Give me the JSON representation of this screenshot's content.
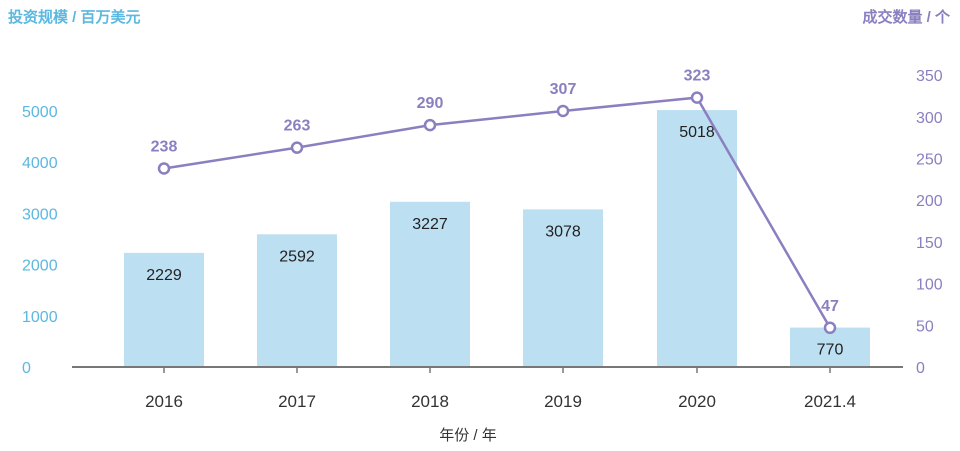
{
  "colors": {
    "bar": "#bcdff2",
    "line": "#8b7fc0",
    "left_axis_text": "#5bb8e0",
    "right_axis_text": "#8b7fc0",
    "baseline": "#777777"
  },
  "chart_data": {
    "type": "bar+line",
    "categories": [
      "2016",
      "2017",
      "2018",
      "2019",
      "2020",
      "2021.4"
    ],
    "xlabel": "年份 / 年",
    "left_axis": {
      "label": "投资规模 / 百万美元",
      "ticks": [
        "0",
        "1000",
        "2000",
        "3000",
        "4000",
        "5000"
      ],
      "ylim": [
        0,
        5000
      ]
    },
    "right_axis": {
      "label": "成交数量 / 个",
      "ticks": [
        "0",
        "50",
        "100",
        "150",
        "200",
        "250",
        "300",
        "350"
      ],
      "ylim": [
        0,
        350
      ]
    },
    "series": [
      {
        "type": "bar",
        "axis": "left",
        "values": [
          2229,
          2592,
          3227,
          3078,
          5018,
          770
        ],
        "labels": [
          "2229",
          "2592",
          "3227",
          "3078",
          "5018",
          "770"
        ]
      },
      {
        "type": "line",
        "axis": "right",
        "values": [
          238,
          263,
          290,
          307,
          323,
          47
        ],
        "labels": [
          "238",
          "263",
          "290",
          "307",
          "323",
          "47"
        ]
      }
    ],
    "grid": false
  }
}
